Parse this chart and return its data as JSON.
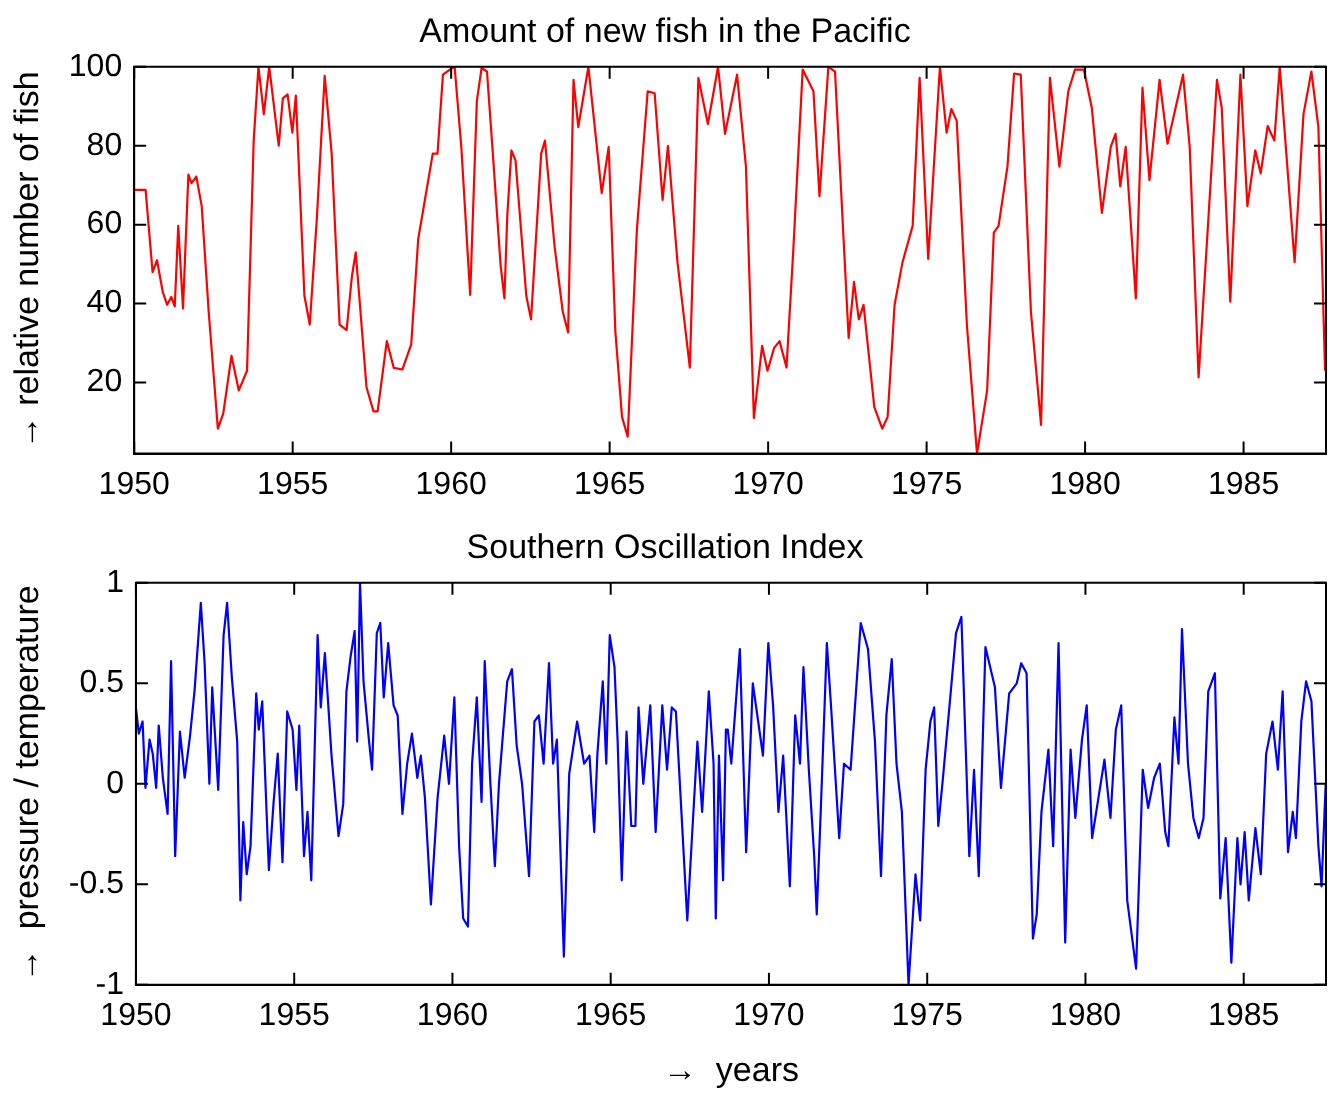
{
  "chart_data": [
    {
      "type": "line",
      "title": "Amount of new fish in the Pacific",
      "ylabel": "→ relative number of fish",
      "xlim": [
        1950,
        1987.6
      ],
      "ylim": [
        2,
        100
      ],
      "xticks": [
        1950,
        1955,
        1960,
        1965,
        1970,
        1975,
        1980,
        1985
      ],
      "yticks": [
        20,
        40,
        60,
        80,
        100
      ],
      "grid": false,
      "legend": false,
      "marker": "none",
      "line_style": "solid",
      "series": [
        {
          "color": "#ff0000",
          "x": [
            1950,
            1950.36,
            1950.58,
            1950.72,
            1950.9,
            1951.04,
            1951.17,
            1951.28,
            1951.39,
            1951.54,
            1951.71,
            1951.81,
            1951.96,
            1952.13,
            1952.35,
            1952.64,
            1952.81,
            1953.07,
            1953.3,
            1953.56,
            1953.77,
            1953.92,
            1954.09,
            1954.26,
            1954.56,
            1954.69,
            1954.84,
            1954.99,
            1955.1,
            1955.37,
            1955.54,
            1955.76,
            1956.01,
            1956.23,
            1956.48,
            1956.7,
            1956.87,
            1956.99,
            1957.33,
            1957.55,
            1957.68,
            1957.97,
            1958.19,
            1958.46,
            1958.74,
            1958.96,
            1959.42,
            1959.57,
            1959.74,
            1959.96,
            1960.11,
            1960.32,
            1960.6,
            1960.81,
            1960.96,
            1961.13,
            1961.3,
            1961.56,
            1961.68,
            1961.77,
            1961.9,
            1962.03,
            1962.37,
            1962.52,
            1962.84,
            1962.96,
            1963.26,
            1963.52,
            1963.69,
            1963.86,
            1964.01,
            1964.33,
            1964.75,
            1964.97,
            1965.18,
            1965.39,
            1965.57,
            1965.86,
            1966.2,
            1966.42,
            1966.67,
            1966.84,
            1967.14,
            1967.53,
            1967.8,
            1968.1,
            1968.42,
            1968.64,
            1969.02,
            1969.3,
            1969.55,
            1969.81,
            1969.98,
            1970.19,
            1970.36,
            1970.58,
            1970.79,
            1971.09,
            1971.43,
            1971.62,
            1971.9,
            1972.11,
            1972.54,
            1972.71,
            1972.86,
            1973.01,
            1973.35,
            1973.6,
            1973.77,
            1973.99,
            1974.24,
            1974.56,
            1974.78,
            1975.05,
            1975.42,
            1975.63,
            1975.78,
            1975.95,
            1976.27,
            1976.59,
            1976.91,
            1977.12,
            1977.27,
            1977.55,
            1977.76,
            1977.97,
            1978.29,
            1978.61,
            1978.89,
            1979.19,
            1979.47,
            1979.68,
            1979.96,
            1980.21,
            1980.53,
            1980.81,
            1980.96,
            1981.11,
            1981.28,
            1981.6,
            1981.81,
            1982.03,
            1982.35,
            1982.6,
            1983.09,
            1983.3,
            1983.58,
            1984.16,
            1984.31,
            1984.58,
            1984.9,
            1985.12,
            1985.37,
            1985.54,
            1985.76,
            1985.97,
            1986.14,
            1986.61,
            1986.89,
            1987.14,
            1987.36,
            1987.57
          ],
          "values": [
            68.8,
            68.8,
            48,
            51,
            43,
            39.7,
            41.7,
            39.3,
            59.7,
            38.8,
            72.7,
            70.5,
            72.2,
            64.7,
            38,
            8.3,
            12.2,
            26.8,
            18,
            23,
            81.3,
            100,
            88,
            100,
            80,
            92,
            93,
            83.3,
            92.7,
            42,
            34.7,
            61.3,
            97.7,
            78,
            34.7,
            33.3,
            47,
            53,
            18.8,
            12.7,
            12.7,
            30.5,
            23.7,
            23.3,
            29.7,
            56.3,
            78,
            78,
            98,
            99.3,
            100,
            79.7,
            42.2,
            91.3,
            99.7,
            98.8,
            79.7,
            49.7,
            41.3,
            62.2,
            78.8,
            76.3,
            42,
            36,
            78,
            81.3,
            54.7,
            38,
            32.7,
            96.7,
            84.7,
            100,
            68,
            79.7,
            33,
            11.3,
            6.3,
            58.8,
            93.8,
            93.3,
            66.3,
            80,
            50.5,
            23.8,
            97.2,
            85.5,
            100,
            83,
            98,
            74.7,
            11,
            29.3,
            23,
            28.8,
            30.5,
            23.8,
            53,
            99.3,
            93.8,
            67.2,
            100,
            98.8,
            31.3,
            45.5,
            36,
            39.7,
            13.8,
            8.3,
            11.3,
            39.7,
            50.5,
            59.7,
            97.2,
            51.3,
            100,
            83.3,
            89.3,
            86.3,
            34.7,
            2,
            18,
            58,
            59.7,
            74.7,
            98.3,
            98,
            38,
            9.3,
            97.2,
            74.7,
            93.8,
            99.3,
            99.3,
            89.7,
            63,
            79.7,
            83,
            69.7,
            79.7,
            41.3,
            94.7,
            71.3,
            96.7,
            80.5,
            98,
            79.7,
            21.3,
            96.7,
            89.7,
            40.5,
            98,
            64.7,
            78.8,
            73,
            85,
            81.3,
            100,
            50.5,
            88,
            98.8,
            84.7,
            23
          ]
        }
      ]
    },
    {
      "type": "line",
      "title": "Southern Oscillation Index",
      "xlabel": "→  years",
      "ylabel": "→  pressure / temperature",
      "xlim": [
        1950,
        1987.6
      ],
      "ylim": [
        -1,
        1
      ],
      "xticks": [
        1950,
        1955,
        1960,
        1965,
        1970,
        1975,
        1980,
        1985
      ],
      "yticks": [
        -1,
        -0.5,
        0,
        0.5,
        1
      ],
      "grid": false,
      "legend": false,
      "marker": "none",
      "line_style": "solid",
      "series": [
        {
          "color": "#0000ff",
          "x": [
            1950,
            1950.09,
            1950.21,
            1950.3,
            1950.43,
            1950.53,
            1950.64,
            1950.72,
            1950.85,
            1951,
            1951.11,
            1951.24,
            1951.39,
            1951.54,
            1951.71,
            1951.85,
            1952.05,
            1952.17,
            1952.32,
            1952.41,
            1952.6,
            1952.77,
            1952.88,
            1953.03,
            1953.2,
            1953.3,
            1953.39,
            1953.5,
            1953.62,
            1953.8,
            1953.88,
            1953.99,
            1954.2,
            1954.35,
            1954.48,
            1954.63,
            1954.78,
            1954.95,
            1955.07,
            1955.16,
            1955.31,
            1955.42,
            1955.54,
            1955.74,
            1955.84,
            1955.97,
            1956.18,
            1956.4,
            1956.55,
            1956.65,
            1956.78,
            1956.91,
            1956.99,
            1957.08,
            1957.19,
            1957.36,
            1957.46,
            1957.61,
            1957.72,
            1957.83,
            1957.97,
            1958.14,
            1958.27,
            1958.42,
            1958.57,
            1958.72,
            1958.89,
            1959,
            1959.13,
            1959.32,
            1959.53,
            1959.74,
            1959.89,
            1960.06,
            1960.21,
            1960.34,
            1960.49,
            1960.62,
            1960.77,
            1960.92,
            1961.02,
            1961.19,
            1961.34,
            1961.47,
            1961.73,
            1961.88,
            1962.03,
            1962.2,
            1962.42,
            1962.59,
            1962.73,
            1962.88,
            1963.05,
            1963.18,
            1963.3,
            1963.52,
            1963.69,
            1963.94,
            1964.16,
            1964.33,
            1964.48,
            1964.58,
            1964.75,
            1964.86,
            1964.97,
            1965.12,
            1965.22,
            1965.35,
            1965.5,
            1965.65,
            1965.78,
            1965.88,
            1966.03,
            1966.25,
            1966.42,
            1966.63,
            1966.78,
            1966.93,
            1967.06,
            1967.21,
            1967.42,
            1967.57,
            1967.74,
            1967.89,
            1968.1,
            1968.25,
            1968.32,
            1968.42,
            1968.55,
            1968.64,
            1968.7,
            1968.81,
            1969.08,
            1969.28,
            1969.49,
            1969.66,
            1969.81,
            1969.98,
            1970.13,
            1970.3,
            1970.45,
            1970.66,
            1970.83,
            1970.98,
            1971.09,
            1971.26,
            1971.43,
            1971.51,
            1971.64,
            1971.83,
            1971.96,
            1972.22,
            1972.37,
            1972.58,
            1972.9,
            1973.13,
            1973.35,
            1973.54,
            1973.71,
            1973.88,
            1974.03,
            1974.2,
            1974.41,
            1974.63,
            1974.78,
            1974.95,
            1975.1,
            1975.22,
            1975.35,
            1975.48,
            1975.74,
            1975.91,
            1976.08,
            1976.33,
            1976.48,
            1976.63,
            1976.84,
            1977.14,
            1977.33,
            1977.59,
            1977.83,
            1977.97,
            1978.14,
            1978.34,
            1978.46,
            1978.61,
            1978.83,
            1978.98,
            1979.15,
            1979.36,
            1979.53,
            1979.68,
            1979.89,
            1980.04,
            1980.21,
            1980.43,
            1980.6,
            1980.79,
            1980.96,
            1981.13,
            1981.32,
            1981.6,
            1981.81,
            1981.98,
            1982.17,
            1982.35,
            1982.52,
            1982.62,
            1982.81,
            1982.94,
            1983.05,
            1983.24,
            1983.41,
            1983.58,
            1983.73,
            1983.88,
            1984.09,
            1984.26,
            1984.43,
            1984.61,
            1984.8,
            1984.9,
            1985.03,
            1985.16,
            1985.37,
            1985.54,
            1985.71,
            1985.91,
            1986.08,
            1986.23,
            1986.4,
            1986.55,
            1986.65,
            1986.82,
            1986.97,
            1987.14,
            1987.36,
            1987.46,
            1987.59
          ],
          "values": [
            0.38,
            0.25,
            0.31,
            -0.02,
            0.22,
            0.15,
            -0.02,
            0.29,
            0.03,
            -0.15,
            0.61,
            -0.36,
            0.26,
            0.03,
            0.24,
            0.46,
            0.9,
            0.6,
            0,
            0.48,
            -0.03,
            0.74,
            0.9,
            0.53,
            0.21,
            -0.58,
            -0.19,
            -0.45,
            -0.31,
            0.45,
            0.27,
            0.41,
            -0.43,
            -0.09,
            0.15,
            -0.39,
            0.36,
            0.27,
            -0.03,
            0.29,
            -0.36,
            -0.14,
            -0.48,
            0.74,
            0.38,
            0.65,
            0.14,
            -0.26,
            -0.1,
            0.46,
            0.63,
            0.76,
            0.21,
            1,
            0.51,
            0.22,
            0.07,
            0.75,
            0.8,
            0.43,
            0.7,
            0.39,
            0.34,
            -0.15,
            0.1,
            0.25,
            0.03,
            0.14,
            -0.07,
            -0.6,
            -0.07,
            0.24,
            0,
            0.43,
            -0.31,
            -0.67,
            -0.71,
            0.1,
            0.43,
            -0.09,
            0.61,
            0.03,
            -0.41,
            0,
            0.51,
            0.57,
            0.19,
            0,
            -0.46,
            0.31,
            0.34,
            0.1,
            0.6,
            0.1,
            0.22,
            -0.86,
            0.05,
            0.31,
            0.1,
            0.14,
            -0.24,
            0.15,
            0.51,
            0.1,
            0.74,
            0.58,
            0.21,
            -0.48,
            0.26,
            -0.21,
            -0.21,
            0.38,
            0,
            0.39,
            -0.24,
            0.39,
            0.07,
            0.38,
            0.36,
            -0.07,
            -0.68,
            -0.26,
            0.21,
            -0.14,
            0.46,
            0.1,
            -0.67,
            0.14,
            -0.48,
            0.27,
            0.27,
            0.1,
            0.67,
            -0.34,
            0.5,
            0.31,
            0.14,
            0.7,
            0.39,
            -0.14,
            0.14,
            -0.51,
            0.34,
            0.1,
            0.58,
            0.07,
            -0.36,
            -0.65,
            -0.12,
            0.7,
            0.39,
            -0.27,
            0.1,
            0.07,
            0.8,
            0.67,
            0.21,
            -0.46,
            0.34,
            0.62,
            0.1,
            -0.14,
            -1,
            -0.45,
            -0.68,
            0.07,
            0.31,
            0.38,
            -0.21,
            0,
            0.45,
            0.75,
            0.83,
            -0.36,
            0.07,
            -0.46,
            0.68,
            0.48,
            -0.02,
            0.45,
            0.5,
            0.6,
            0.55,
            -0.77,
            -0.65,
            -0.14,
            0.17,
            -0.31,
            0.7,
            -0.79,
            0.17,
            -0.17,
            0.22,
            0.39,
            -0.27,
            -0.05,
            0.12,
            -0.17,
            0.27,
            0.39,
            -0.58,
            -0.92,
            0.07,
            -0.12,
            0.03,
            0.1,
            -0.24,
            -0.31,
            0.33,
            0.1,
            0.77,
            0.1,
            -0.17,
            -0.27,
            -0.17,
            0.46,
            0.55,
            -0.57,
            -0.27,
            -0.89,
            -0.27,
            -0.5,
            -0.24,
            -0.58,
            -0.22,
            -0.45,
            0.15,
            0.31,
            0.07,
            0.46,
            -0.34,
            -0.14,
            -0.27,
            0.31,
            0.51,
            0.41,
            -0.31,
            -0.51,
            0
          ]
        }
      ]
    }
  ]
}
